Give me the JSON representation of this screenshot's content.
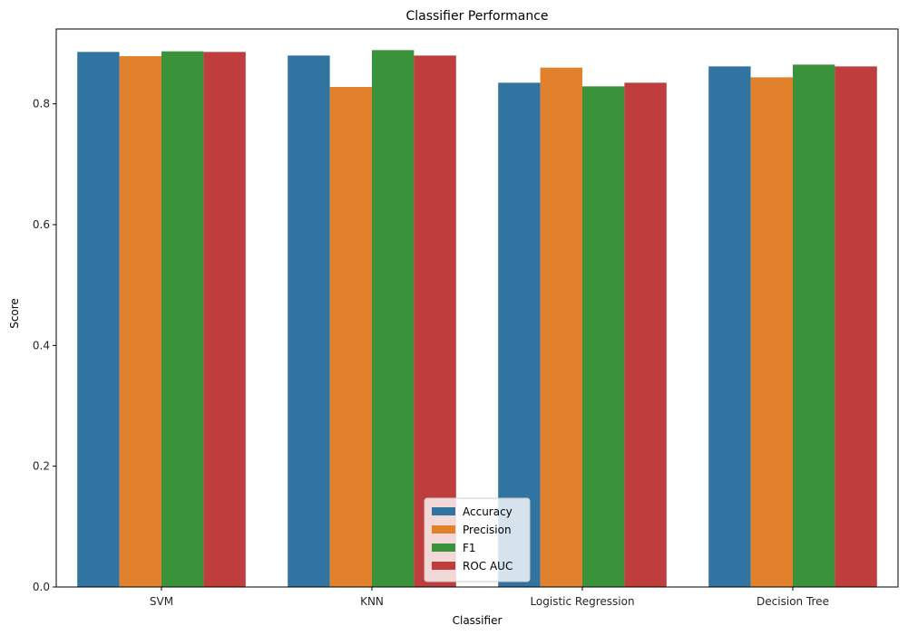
{
  "chart_data": {
    "type": "bar",
    "title": "Classifier Performance",
    "xlabel": "Classifier",
    "ylabel": "Score",
    "ylim": [
      0,
      0.924
    ],
    "yticks": [
      0.0,
      0.2,
      0.4,
      0.6,
      0.8
    ],
    "ytick_labels": [
      "0.0",
      "0.2",
      "0.4",
      "0.6",
      "0.8"
    ],
    "categories": [
      "SVM",
      "KNN",
      "Logistic Regression",
      "Decision Tree"
    ],
    "series": [
      {
        "name": "Accuracy",
        "color": "#3274a1",
        "values": [
          0.886,
          0.88,
          0.835,
          0.862
        ]
      },
      {
        "name": "Precision",
        "color": "#e1812c",
        "values": [
          0.879,
          0.828,
          0.86,
          0.844
        ]
      },
      {
        "name": "F1",
        "color": "#3a923a",
        "values": [
          0.887,
          0.889,
          0.829,
          0.865
        ]
      },
      {
        "name": "ROC AUC",
        "color": "#c03d3e",
        "values": [
          0.886,
          0.88,
          0.835,
          0.862
        ]
      }
    ],
    "legend": {
      "position": "bottom-center"
    },
    "grid": false
  }
}
